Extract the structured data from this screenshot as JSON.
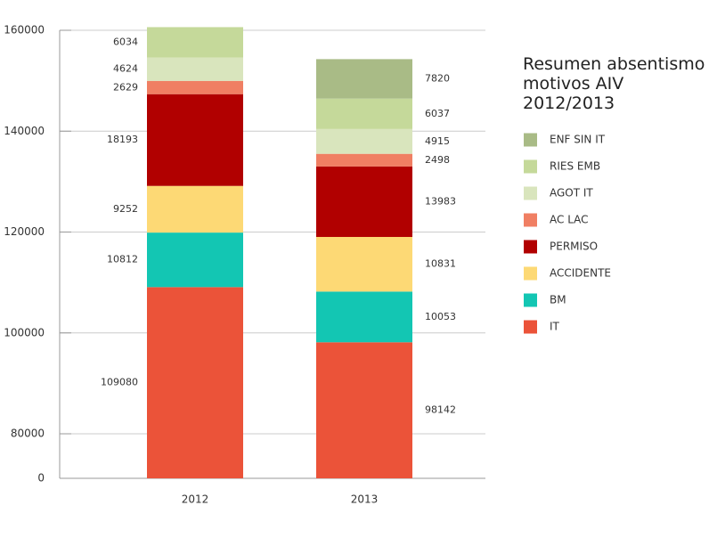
{
  "chart_data": {
    "type": "stacked_bar",
    "title": "Resumen absentismo motivos AIV 2012/2013",
    "categories": [
      "2012",
      "2013"
    ],
    "series": [
      {
        "name": "IT",
        "color": "#eb5339",
        "values": [
          109080,
          98142
        ]
      },
      {
        "name": "BM",
        "color": "#13c6b3",
        "values": [
          10812,
          10053
        ]
      },
      {
        "name": "ACCIDENTE",
        "color": "#fdd975",
        "values": [
          9252,
          10831
        ]
      },
      {
        "name": "PERMISO",
        "color": "#b10000",
        "values": [
          18193,
          13983
        ]
      },
      {
        "name": "AC LAC",
        "color": "#f07f63",
        "values": [
          2629,
          2498
        ]
      },
      {
        "name": "AGOT IT",
        "color": "#d9e5bd",
        "values": [
          4624,
          4915
        ]
      },
      {
        "name": "RIES EMB",
        "color": "#c5d99a",
        "values": [
          6034,
          6037
        ]
      },
      {
        "name": "ENF SIN IT",
        "color": "#a9bb86",
        "values": [
          null,
          7820
        ]
      }
    ],
    "ylim": [
      0,
      160000
    ],
    "yticks": [
      0,
      80000,
      100000,
      120000,
      140000,
      160000
    ],
    "grid": true,
    "legend": "right"
  }
}
